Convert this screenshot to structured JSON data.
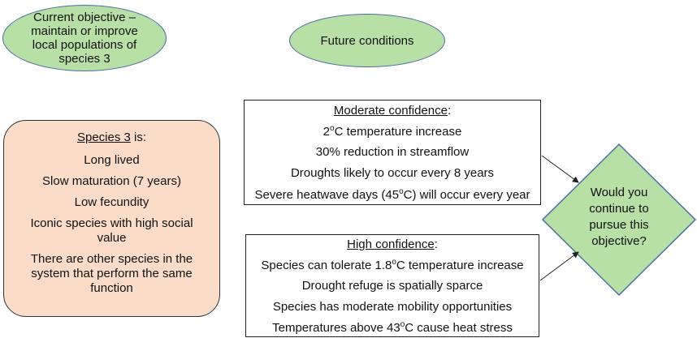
{
  "objective": {
    "lines": [
      "Current objective –",
      "maintain or improve",
      "local populations of",
      "species 3"
    ]
  },
  "future": {
    "label": "Future conditions"
  },
  "moderate": {
    "heading": "Moderate confidence",
    "heading_suffix": ":",
    "items": [
      {
        "pre": "2",
        "sup": "o",
        "post": "C temperature increase"
      },
      {
        "pre": "30% reduction in streamflow",
        "sup": "",
        "post": ""
      },
      {
        "pre": "Droughts likely to occur every 8 years",
        "sup": "",
        "post": ""
      },
      {
        "pre": "Severe heatwave days (45",
        "sup": "o",
        "post": "C)  will occur every year"
      }
    ]
  },
  "high": {
    "heading": "High confidence",
    "heading_suffix": ":",
    "items": [
      {
        "pre": "Species can tolerate 1.8",
        "sup": "o",
        "post": "C temperature increase"
      },
      {
        "pre": "Drought refuge is spatially sparce",
        "sup": "",
        "post": ""
      },
      {
        "pre": "Species has moderate mobility opportunities",
        "sup": "",
        "post": ""
      },
      {
        "pre": "Temperatures above 43",
        "sup": "o",
        "post": "C cause heat stress"
      }
    ]
  },
  "species": {
    "heading": "Species 3",
    "heading_suffix": " is:",
    "items": [
      "Long lived",
      "Slow maturation (7 years)",
      "Low fecundity",
      "Iconic species with high social",
      "value",
      "There are other species in the",
      "system that perform the same",
      "function"
    ]
  },
  "decision": {
    "lines": [
      "Would you",
      "continue to",
      "pursue this",
      "objective?"
    ]
  },
  "colors": {
    "ellipse_fill": "#b8dfa5",
    "diamond_fill": "#b8dfa5",
    "species_fill": "#fbdcc9"
  }
}
